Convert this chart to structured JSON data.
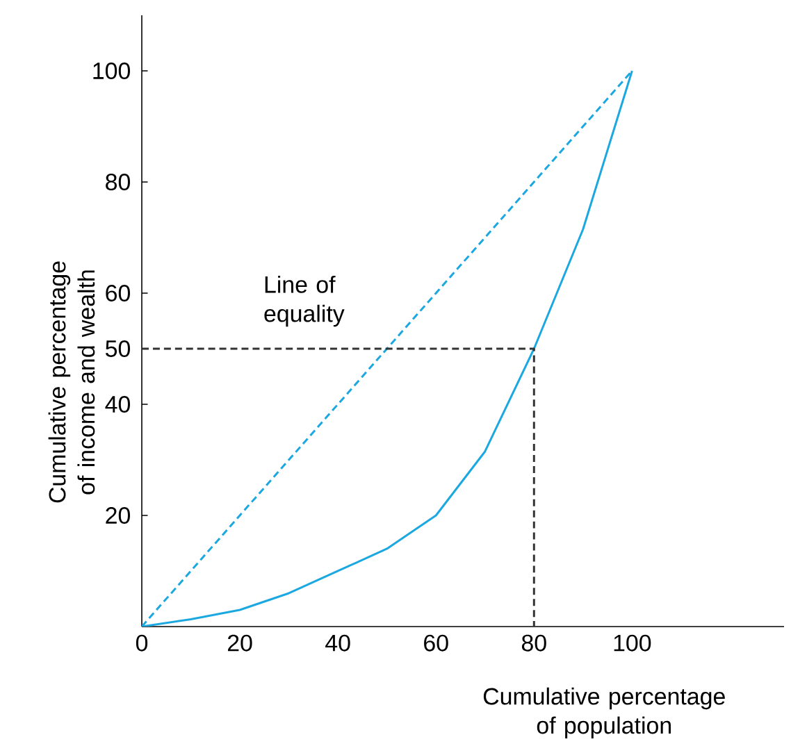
{
  "chart_data": {
    "type": "line",
    "xlabel": "Cumulative percentage of population",
    "ylabel": "Cumulative percentage of income and wealth",
    "xlim": [
      0,
      131
    ],
    "ylim": [
      0,
      110
    ],
    "xticks": [
      0,
      20,
      40,
      60,
      80,
      100
    ],
    "yticks": [
      20,
      40,
      50,
      60,
      80,
      100
    ],
    "grid": false,
    "legend": false,
    "marker": "none",
    "series": [
      {
        "color": "#1ba8e0",
        "line_style": "solid",
        "x": [
          0,
          10,
          20,
          30,
          40,
          50,
          60,
          70,
          80,
          90,
          100
        ],
        "values": [
          0,
          1.3,
          3,
          6,
          10,
          14,
          20,
          31.5,
          50,
          71.5,
          100
        ]
      },
      {
        "name": "Line of equality",
        "color": "#1ba8e0",
        "line_style": "dashed",
        "x": [
          0,
          100
        ],
        "values": [
          0,
          100
        ]
      },
      {
        "color": "#333333",
        "line_style": "dashed",
        "x": [
          0,
          80,
          80
        ],
        "values": [
          50,
          50,
          0
        ]
      }
    ]
  }
}
